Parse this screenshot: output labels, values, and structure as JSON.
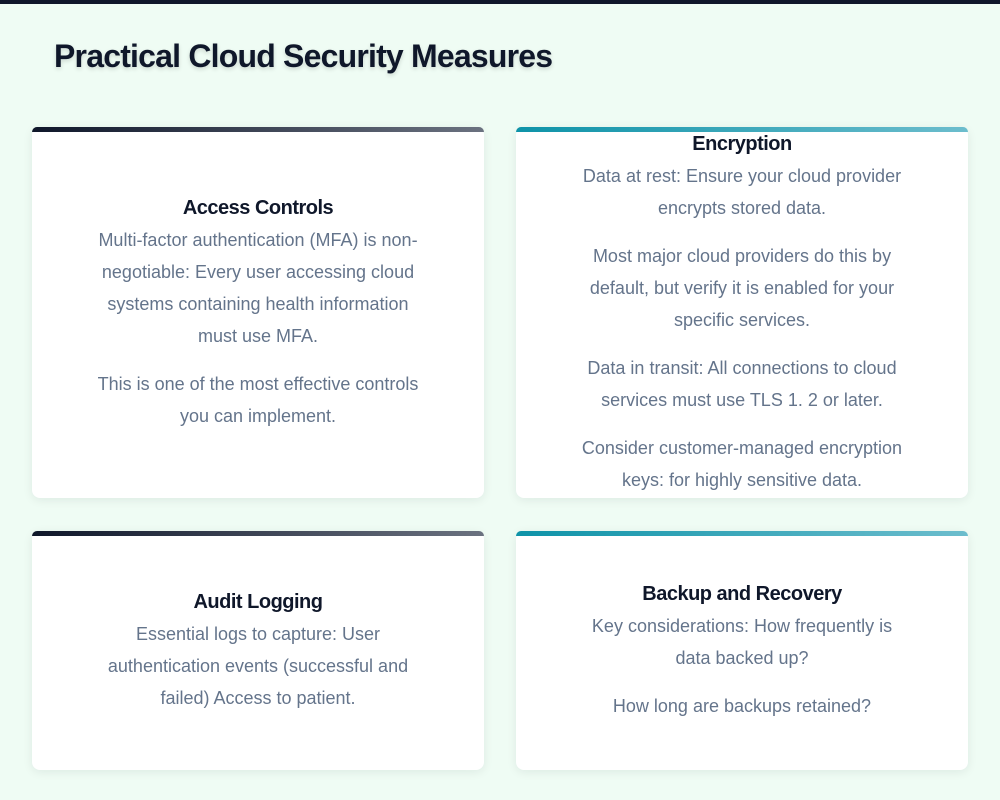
{
  "title": "Practical Cloud Security Measures",
  "colors": {
    "background": "#effcf4",
    "dark_accent": "#0f172a",
    "teal_accent": "#0e93a8",
    "text": "#64748b"
  },
  "cards": [
    {
      "heading": "Access Controls",
      "paragraphs": [
        "Multi-factor authentication (MFA) is non-negotiable: Every user accessing cloud systems containing health information must use MFA.",
        "This is one of the most effective controls you can implement."
      ]
    },
    {
      "heading": "Encryption",
      "paragraphs": [
        "Data at rest: Ensure your cloud provider encrypts stored data.",
        "Most major cloud providers do this by default, but verify it is enabled for your specific services.",
        "Data in transit: All connections to cloud services must use TLS 1. 2 or later.",
        "Consider customer-managed encryption keys: for highly sensitive data."
      ]
    },
    {
      "heading": "Audit Logging",
      "paragraphs": [
        "Essential logs to capture: User authentication events (successful and failed) Access to patient."
      ]
    },
    {
      "heading": "Backup and Recovery",
      "paragraphs": [
        "Key considerations: How frequently is data backed up?",
        "How long are backups retained?"
      ]
    }
  ]
}
